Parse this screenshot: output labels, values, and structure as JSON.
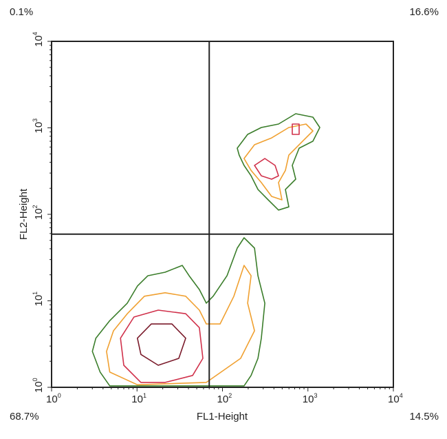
{
  "chart_data": {
    "type": "contour",
    "xlabel": "FL1-Height",
    "ylabel": "FL2-Height",
    "xscale": "log",
    "yscale": "log",
    "xlim": [
      1,
      10000
    ],
    "ylim": [
      1,
      10000
    ],
    "x_ticks": [
      {
        "base": "10",
        "exp": "0"
      },
      {
        "base": "10",
        "exp": "1"
      },
      {
        "base": "10",
        "exp": "2"
      },
      {
        "base": "10",
        "exp": "3"
      },
      {
        "base": "10",
        "exp": "4"
      }
    ],
    "y_ticks": [
      {
        "base": "10",
        "exp": "0"
      },
      {
        "base": "10",
        "exp": "1"
      },
      {
        "base": "10",
        "exp": "2"
      },
      {
        "base": "10",
        "exp": "3"
      },
      {
        "base": "10",
        "exp": "4"
      }
    ],
    "quadrant_gate": {
      "x": 70,
      "y": 59
    },
    "quadrants": {
      "upper_left": "0.1%",
      "upper_right": "16.6%",
      "lower_left": "68.7%",
      "lower_right": "14.5%"
    },
    "contour_colors": {
      "outer": "#3a7d2a",
      "middle": "#f0a030",
      "inner": "#d0304a",
      "core": "#7a1a2a"
    },
    "contours": [
      {
        "level": "outer",
        "points": [
          [
            149,
            582
          ],
          [
            197,
            840
          ],
          [
            285,
            1009
          ],
          [
            453,
            1107
          ],
          [
            720,
            1456
          ],
          [
            1143,
            1330
          ],
          [
            1377,
            1009
          ],
          [
            1143,
            700
          ],
          [
            789,
            582
          ],
          [
            656,
            368
          ],
          [
            720,
            255
          ],
          [
            545,
            194
          ],
          [
            598,
            122
          ],
          [
            453,
            112
          ],
          [
            343,
            147
          ],
          [
            260,
            194
          ],
          [
            216,
            279
          ],
          [
            179,
            368
          ],
          [
            157,
            484
          ]
        ]
      },
      {
        "level": "middle",
        "points": [
          [
            179,
            442
          ],
          [
            237,
            638
          ],
          [
            376,
            765
          ],
          [
            598,
            1009
          ],
          [
            950,
            1107
          ],
          [
            1143,
            920
          ],
          [
            866,
            700
          ],
          [
            598,
            484
          ],
          [
            545,
            322
          ],
          [
            453,
            233
          ],
          [
            497,
            147
          ],
          [
            376,
            161
          ],
          [
            285,
            233
          ],
          [
            216,
            322
          ]
        ]
      },
      {
        "level": "inner",
        "points": [
          [
            237,
            368
          ],
          [
            313,
            442
          ],
          [
            413,
            368
          ],
          [
            453,
            279
          ],
          [
            376,
            255
          ],
          [
            285,
            279
          ]
        ]
      },
      {
        "level": "inner",
        "points": [
          [
            656,
            1107
          ],
          [
            789,
            1107
          ],
          [
            789,
            840
          ],
          [
            656,
            840
          ]
        ]
      },
      {
        "level": "outer",
        "points": [
          [
            3.3,
            3.7
          ],
          [
            4.8,
            5.9
          ],
          [
            7.7,
            9.4
          ],
          [
            10.1,
            14.8
          ],
          [
            13.4,
            19.5
          ],
          [
            21.3,
            21.4
          ],
          [
            33.8,
            25.7
          ],
          [
            40.7,
            19.5
          ],
          [
            53.7,
            13.5
          ],
          [
            64.7,
            9.4
          ],
          [
            77.9,
            11.3
          ],
          [
            113,
            19.5
          ],
          [
            149,
            40.7
          ],
          [
            179,
            53.6
          ],
          [
            237,
            40.7
          ],
          [
            260,
            19.5
          ],
          [
            313,
            9.4
          ],
          [
            285,
            3.7
          ],
          [
            260,
            2.16
          ],
          [
            216,
            1.37
          ],
          [
            179,
            1.04
          ],
          [
            77.9,
            1.04
          ],
          [
            25.6,
            1.04
          ],
          [
            4.8,
            1.04
          ],
          [
            3.7,
            1.5
          ],
          [
            3.0,
            2.6
          ]
        ]
      },
      {
        "level": "middle",
        "points": [
          [
            5.3,
            4.5
          ],
          [
            7.7,
            7.1
          ],
          [
            12.2,
            11.3
          ],
          [
            21.3,
            12.4
          ],
          [
            37.1,
            11.3
          ],
          [
            53.7,
            7.8
          ],
          [
            64.7,
            5.4
          ],
          [
            93.7,
            5.4
          ],
          [
            136,
            11.3
          ],
          [
            179,
            25.7
          ],
          [
            216,
            19.5
          ],
          [
            197,
            9.4
          ],
          [
            237,
            4.5
          ],
          [
            163,
            2.16
          ],
          [
            64.7,
            1.14
          ],
          [
            10.1,
            1.07
          ],
          [
            4.8,
            1.5
          ],
          [
            4.4,
            2.6
          ]
        ]
      },
      {
        "level": "inner",
        "points": [
          [
            6.4,
            3.7
          ],
          [
            9.2,
            6.5
          ],
          [
            17.7,
            7.8
          ],
          [
            37.1,
            7.1
          ],
          [
            53.7,
            4.9
          ],
          [
            59,
            2.16
          ],
          [
            44.7,
            1.37
          ],
          [
            21.3,
            1.14
          ],
          [
            11.1,
            1.14
          ],
          [
            7.0,
            1.8
          ]
        ]
      },
      {
        "level": "core",
        "points": [
          [
            10.1,
            3.7
          ],
          [
            14.7,
            5.4
          ],
          [
            25.6,
            5.4
          ],
          [
            37.1,
            3.7
          ],
          [
            30.8,
            2.16
          ],
          [
            17.7,
            1.8
          ],
          [
            11.1,
            2.4
          ]
        ]
      }
    ]
  }
}
